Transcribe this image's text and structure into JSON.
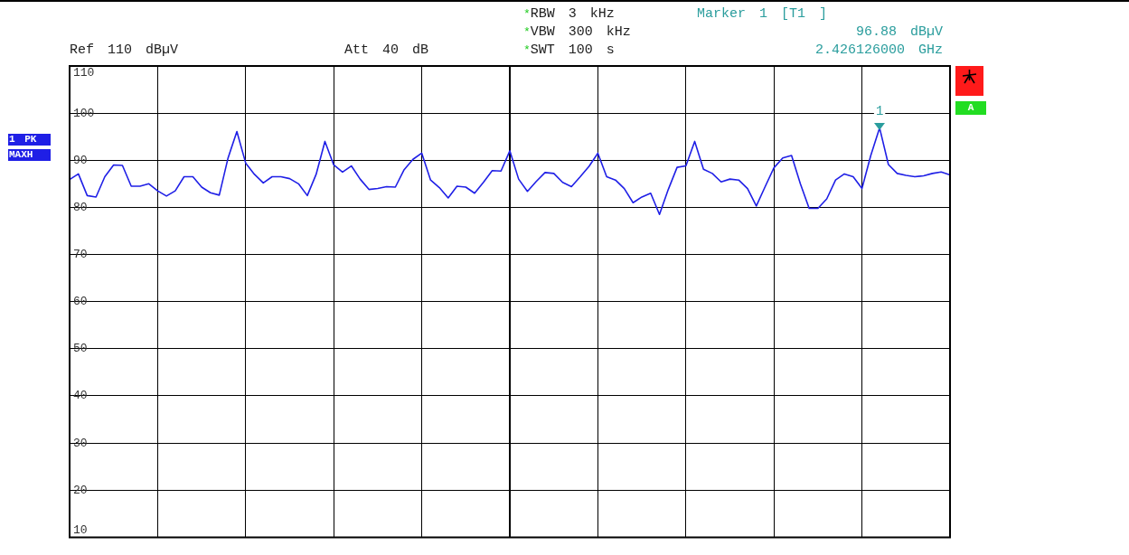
{
  "chart_data": {
    "type": "line",
    "categories": [
      null,
      null,
      null,
      null,
      null,
      null,
      null,
      null,
      null,
      null,
      null,
      null,
      null,
      null,
      null,
      null,
      null,
      null,
      null,
      null,
      null,
      null,
      null,
      null,
      null,
      null,
      null,
      null,
      null,
      null,
      null,
      null,
      null,
      null,
      null,
      null,
      null,
      null,
      null,
      null,
      null,
      null,
      null,
      null,
      null,
      null,
      null,
      null,
      null,
      null,
      null,
      null,
      null,
      null,
      null,
      null,
      null,
      null,
      null,
      null,
      null,
      null,
      null,
      null,
      null,
      null,
      null,
      null,
      null,
      null,
      null,
      null,
      null,
      null,
      null,
      null,
      null,
      null,
      null,
      null,
      null,
      null,
      null,
      null,
      null,
      null,
      null,
      null,
      null,
      null,
      null,
      null,
      null,
      null,
      null,
      null,
      null,
      null,
      null,
      null,
      null
    ],
    "series": [
      {
        "color": "#1f1fe6",
        "values": [
          85.9,
          87.1,
          82.5,
          82.2,
          86.5,
          89.0,
          88.9,
          84.5,
          84.5,
          85.0,
          83.5,
          82.4,
          83.5,
          86.5,
          86.5,
          84.3,
          83.1,
          82.6,
          90.5,
          96.1,
          89.4,
          87.0,
          85.2,
          86.5,
          86.5,
          86.1,
          85.0,
          82.5,
          87.0,
          94.0,
          89.0,
          87.5,
          88.8,
          86.0,
          83.8,
          84.0,
          84.4,
          84.3,
          88.0,
          90.2,
          91.5,
          85.8,
          84.2,
          82.0,
          84.5,
          84.3,
          83.0,
          85.3,
          87.8,
          87.7,
          92.0,
          86.0,
          83.4,
          85.5,
          87.4,
          87.2,
          85.3,
          84.4,
          86.5,
          88.7,
          91.5,
          86.5,
          85.8,
          84.0,
          81.0,
          82.2,
          83.0,
          78.5,
          83.8,
          88.5,
          88.8,
          94.0,
          88.1,
          87.2,
          85.4,
          86.0,
          85.8,
          84.0,
          80.3,
          84.4,
          88.4,
          90.5,
          91.0,
          85.0,
          79.8,
          79.8,
          81.8,
          85.8,
          87.1,
          86.5,
          84.0,
          91.0,
          96.88,
          89.1,
          87.2,
          86.8,
          86.5,
          86.7,
          87.2,
          87.5,
          86.9
        ]
      }
    ],
    "ylim": [
      10,
      110
    ],
    "yticks": [
      10,
      20,
      30,
      40,
      50,
      60,
      70,
      80,
      90,
      100,
      110
    ],
    "tick_labels": "y",
    "grid": true,
    "legend": false,
    "marker": "none",
    "line_style": "solid",
    "annotations": [
      "Ref 110 dBµV",
      "Att 40 dB",
      "*RBW 3 kHz",
      "*VBW 300 kHz",
      "*SWT 100 s",
      "Marker 1 [T1 ]",
      "96.88 dBµV",
      "2.426126000 GHz",
      "1 PK",
      "MAXH",
      "A",
      {
        "text": "1",
        "y": 96.88
      }
    ]
  }
}
